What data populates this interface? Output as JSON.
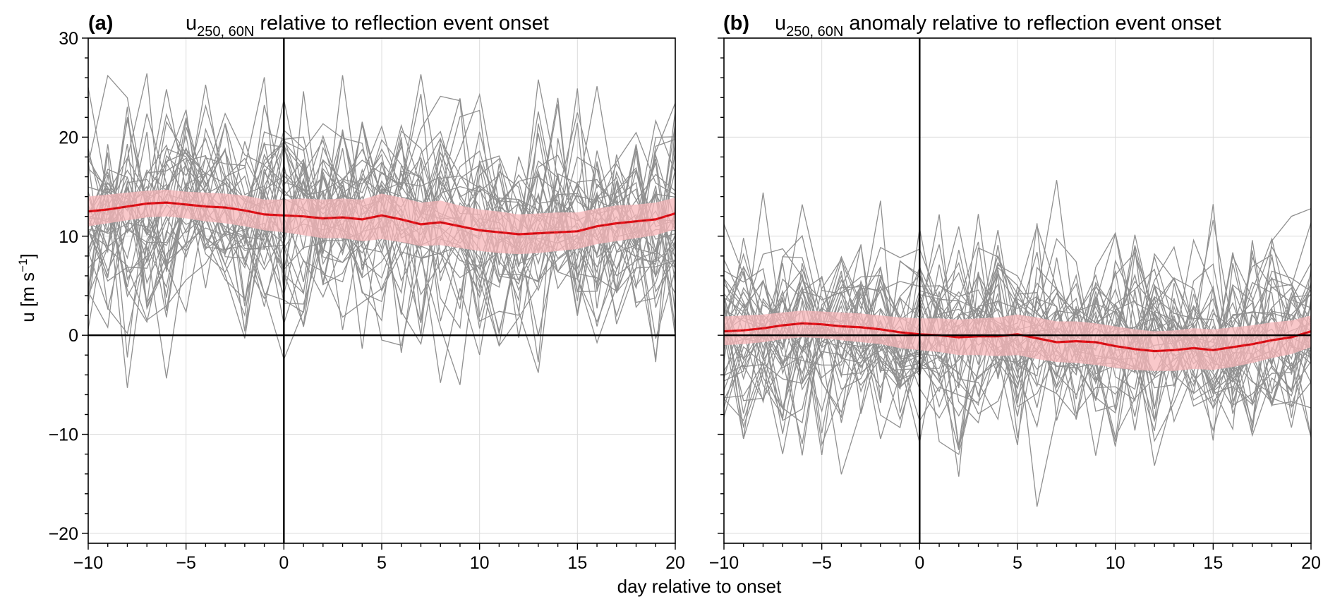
{
  "figure": {
    "xlabel": "day relative to onset",
    "ylabel_main": "u [m s",
    "ylabel_sup": "−1",
    "ylabel_tail": "]"
  },
  "chart_data": [
    {
      "type": "line",
      "panel_letter": "(a)",
      "title_main": "u",
      "title_sub": "250, 60N",
      "title_rest": " relative to reflection event onset",
      "xlim": [
        -10,
        20
      ],
      "ylim": [
        -21,
        30
      ],
      "xticks": [
        -10,
        -5,
        0,
        5,
        10,
        15,
        20
      ],
      "yticks": [
        -20,
        -10,
        0,
        10,
        20,
        30
      ],
      "xtick_labels": [
        "−10",
        "−5",
        "0",
        "5",
        "10",
        "15",
        "20"
      ],
      "ytick_labels": [
        "−20",
        "−10",
        "0",
        "10",
        "20",
        "30"
      ],
      "grid": true,
      "reference_lines": {
        "x": 0,
        "y": 0
      },
      "member_color": "#909090",
      "mean_color": "#e8141c",
      "band_color": "#f7b6b8",
      "members_note": "about 40 gray event members; values estimated (individually unreadable)",
      "members_count": 40,
      "members_seed": 17,
      "members_center": 12,
      "members_spread": 6.5,
      "x": [
        -10,
        -9,
        -8,
        -7,
        -6,
        -5,
        -4,
        -3,
        -2,
        -1,
        0,
        1,
        2,
        3,
        4,
        5,
        6,
        7,
        8,
        9,
        10,
        11,
        12,
        13,
        14,
        15,
        16,
        17,
        18,
        19,
        20
      ],
      "mean": [
        12.5,
        12.7,
        13.0,
        13.3,
        13.4,
        13.2,
        13.0,
        12.9,
        12.6,
        12.2,
        12.1,
        12.0,
        11.8,
        11.9,
        11.7,
        12.1,
        11.7,
        11.2,
        11.4,
        11.0,
        10.6,
        10.4,
        10.2,
        10.3,
        10.4,
        10.5,
        11.0,
        11.3,
        11.5,
        11.7,
        12.3
      ],
      "band_lower": [
        11.0,
        11.3,
        11.6,
        11.9,
        12.0,
        11.8,
        11.5,
        11.3,
        11.0,
        10.6,
        10.4,
        10.1,
        9.8,
        9.8,
        9.5,
        9.7,
        9.4,
        9.0,
        9.1,
        8.8,
        8.5,
        8.3,
        8.2,
        8.3,
        8.5,
        8.7,
        9.2,
        9.5,
        9.8,
        10.1,
        10.7
      ],
      "band_upper": [
        14.0,
        14.2,
        14.4,
        14.6,
        14.7,
        14.5,
        14.4,
        14.3,
        14.1,
        13.7,
        13.7,
        13.8,
        13.7,
        13.8,
        13.7,
        14.3,
        13.9,
        13.4,
        13.6,
        13.1,
        12.7,
        12.5,
        12.2,
        12.3,
        12.4,
        12.4,
        12.8,
        13.1,
        13.2,
        13.4,
        13.9
      ]
    },
    {
      "type": "line",
      "panel_letter": "(b)",
      "title_main": "u",
      "title_sub": "250, 60N",
      "title_rest": " anomaly relative to reflection event onset",
      "xlim": [
        -10,
        20
      ],
      "ylim": [
        -21,
        30
      ],
      "xticks": [
        -10,
        -5,
        0,
        5,
        10,
        15,
        20
      ],
      "yticks": [
        -20,
        -10,
        0,
        10,
        20,
        30
      ],
      "xtick_labels": [
        "−10",
        "−5",
        "0",
        "5",
        "10",
        "15",
        "20"
      ],
      "grid": true,
      "reference_lines": {
        "x": 0,
        "y": 0
      },
      "member_color": "#909090",
      "mean_color": "#e8141c",
      "band_color": "#f7b6b8",
      "members_note": "about 40 gray event members; values estimated (individually unreadable)",
      "members_count": 40,
      "members_seed": 53,
      "members_center": -0.5,
      "members_spread": 6.3,
      "x": [
        -10,
        -9,
        -8,
        -7,
        -6,
        -5,
        -4,
        -3,
        -2,
        -1,
        0,
        1,
        2,
        3,
        4,
        5,
        6,
        7,
        8,
        9,
        10,
        11,
        12,
        13,
        14,
        15,
        16,
        17,
        18,
        19,
        20
      ],
      "mean": [
        0.4,
        0.5,
        0.7,
        1.0,
        1.2,
        1.1,
        0.9,
        0.8,
        0.6,
        0.3,
        0.1,
        0.0,
        -0.2,
        -0.1,
        -0.1,
        0.1,
        -0.3,
        -0.7,
        -0.6,
        -0.7,
        -1.1,
        -1.4,
        -1.6,
        -1.5,
        -1.3,
        -1.5,
        -1.2,
        -0.9,
        -0.5,
        -0.2,
        0.4
      ],
      "band_lower": [
        -1.0,
        -0.9,
        -0.7,
        -0.4,
        -0.2,
        -0.3,
        -0.5,
        -0.7,
        -0.9,
        -1.3,
        -1.5,
        -1.7,
        -2.0,
        -2.0,
        -2.1,
        -2.0,
        -2.4,
        -2.7,
        -2.8,
        -3.0,
        -3.3,
        -3.5,
        -3.6,
        -3.6,
        -3.4,
        -3.5,
        -3.2,
        -2.8,
        -2.3,
        -1.9,
        -1.2
      ],
      "band_upper": [
        1.9,
        2.0,
        2.1,
        2.3,
        2.5,
        2.4,
        2.3,
        2.2,
        2.0,
        1.8,
        1.7,
        1.7,
        1.6,
        1.7,
        1.8,
        2.1,
        1.8,
        1.4,
        1.4,
        1.2,
        0.9,
        0.6,
        0.4,
        0.5,
        0.7,
        0.6,
        0.8,
        1.0,
        1.3,
        1.5,
        2.0
      ]
    }
  ]
}
